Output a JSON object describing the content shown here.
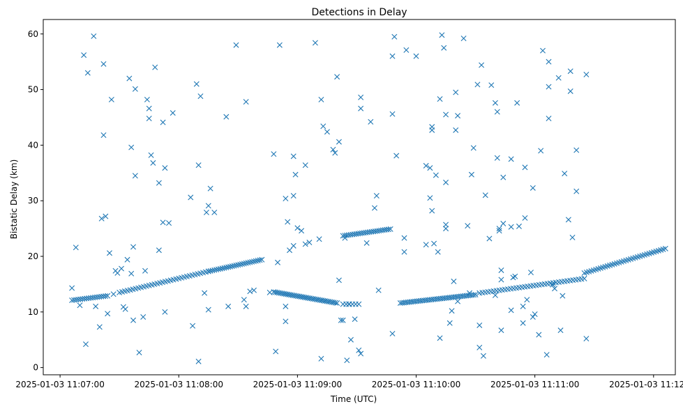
{
  "chart_data": {
    "type": "scatter",
    "title": "Detections in Delay",
    "xlabel": "Time (UTC)",
    "ylabel": "Bistatic Delay (km)",
    "marker": "x",
    "color": "#1f77b4",
    "xlim": [
      -8.5,
      311
    ],
    "ylim": [
      -1.3,
      62.6
    ],
    "x_unit": "seconds after 2025-01-03 11:07:00",
    "xticks": [
      {
        "value": 0,
        "label": "2025-01-03 11:07:00"
      },
      {
        "value": 60,
        "label": "2025-01-03 11:08:00"
      },
      {
        "value": 120,
        "label": "2025-01-03 11:09:00"
      },
      {
        "value": 180,
        "label": "2025-01-03 11:10:00"
      },
      {
        "value": 240,
        "label": "2025-01-03 11:11:00"
      },
      {
        "value": 300,
        "label": "2025-01-03 11:12:00"
      }
    ],
    "yticks": [
      {
        "value": 0,
        "label": "0"
      },
      {
        "value": 10,
        "label": "10"
      },
      {
        "value": 20,
        "label": "20"
      },
      {
        "value": 30,
        "label": "30"
      },
      {
        "value": 40,
        "label": "40"
      },
      {
        "value": 50,
        "label": "50"
      },
      {
        "value": 60,
        "label": "60"
      }
    ],
    "track": {
      "segments": [
        {
          "x_start": 6,
          "x_end": 24,
          "y_start": 12.1,
          "y_end": 12.9,
          "n": 18
        },
        {
          "x_start": 30,
          "x_end": 75,
          "y_start": 13.5,
          "y_end": 17.3,
          "n": 34
        },
        {
          "x_start": 75,
          "x_end": 102,
          "y_start": 17.3,
          "y_end": 19.4,
          "n": 28
        },
        {
          "x_start": 108,
          "x_end": 140,
          "y_start": 13.6,
          "y_end": 11.6,
          "n": 38
        },
        {
          "x_start": 143,
          "x_end": 151,
          "y_start": 11.4,
          "y_end": 11.4,
          "n": 6
        },
        {
          "x_start": 143,
          "x_end": 167,
          "y_start": 23.7,
          "y_end": 24.9,
          "n": 26
        },
        {
          "x_start": 172,
          "x_end": 210,
          "y_start": 11.6,
          "y_end": 13.1,
          "n": 42
        },
        {
          "x_start": 212,
          "x_end": 265,
          "y_start": 13.4,
          "y_end": 16.0,
          "n": 38
        },
        {
          "x_start": 265,
          "x_end": 306,
          "y_start": 17.0,
          "y_end": 21.4,
          "n": 36
        }
      ]
    },
    "scatter_points": [
      [
        6,
        14.3
      ],
      [
        8,
        21.6
      ],
      [
        10,
        11.2
      ],
      [
        12,
        56.2
      ],
      [
        13,
        4.2
      ],
      [
        14,
        53
      ],
      [
        17,
        59.6
      ],
      [
        18,
        11
      ],
      [
        20,
        7.3
      ],
      [
        21,
        26.8
      ],
      [
        22,
        41.8
      ],
      [
        22,
        54.6
      ],
      [
        23,
        27.2
      ],
      [
        24,
        9.7
      ],
      [
        25,
        20.6
      ],
      [
        26,
        48.2
      ],
      [
        27,
        13.2
      ],
      [
        28,
        17.4
      ],
      [
        29,
        17
      ],
      [
        31,
        17.8
      ],
      [
        32,
        10.9
      ],
      [
        33,
        10.5
      ],
      [
        34,
        19.4
      ],
      [
        35,
        52
      ],
      [
        36,
        39.6
      ],
      [
        36,
        16.9
      ],
      [
        37,
        8.5
      ],
      [
        37,
        21.7
      ],
      [
        38,
        34.5
      ],
      [
        38,
        50.1
      ],
      [
        40,
        2.7
      ],
      [
        42,
        9.1
      ],
      [
        43,
        17.4
      ],
      [
        44,
        48.2
      ],
      [
        45,
        46.6
      ],
      [
        45,
        44.8
      ],
      [
        46,
        38.2
      ],
      [
        47,
        36.8
      ],
      [
        48,
        54
      ],
      [
        50,
        33.2
      ],
      [
        50,
        21.1
      ],
      [
        52,
        26.1
      ],
      [
        52,
        44.1
      ],
      [
        53,
        35.9
      ],
      [
        53,
        10
      ],
      [
        55,
        26
      ],
      [
        57,
        45.8
      ],
      [
        66,
        30.6
      ],
      [
        67,
        7.5
      ],
      [
        69,
        51
      ],
      [
        70,
        36.4
      ],
      [
        70,
        1.1
      ],
      [
        71,
        48.8
      ],
      [
        73,
        13.4
      ],
      [
        74,
        27.9
      ],
      [
        75,
        29.1
      ],
      [
        75,
        10.4
      ],
      [
        76,
        32.2
      ],
      [
        78,
        27.9
      ],
      [
        84,
        45.1
      ],
      [
        85,
        11
      ],
      [
        89,
        58
      ],
      [
        93,
        12.2
      ],
      [
        94,
        11
      ],
      [
        94,
        47.8
      ],
      [
        96,
        13.7
      ],
      [
        98,
        13.9
      ],
      [
        106,
        13.5
      ],
      [
        108,
        38.4
      ],
      [
        109,
        2.9
      ],
      [
        110,
        18.9
      ],
      [
        111,
        58
      ],
      [
        114,
        8.3
      ],
      [
        114,
        11
      ],
      [
        114,
        30.4
      ],
      [
        115,
        26.2
      ],
      [
        116,
        21.1
      ],
      [
        118,
        30.9
      ],
      [
        118,
        38
      ],
      [
        118,
        21.9
      ],
      [
        119,
        34.7
      ],
      [
        120,
        25.1
      ],
      [
        122,
        24.6
      ],
      [
        124,
        36.4
      ],
      [
        124,
        22.2
      ],
      [
        126,
        22.5
      ],
      [
        129,
        58.4
      ],
      [
        131,
        23.1
      ],
      [
        132,
        1.6
      ],
      [
        132,
        48.2
      ],
      [
        133,
        43.4
      ],
      [
        135,
        42.4
      ],
      [
        138,
        39.2
      ],
      [
        139,
        38.6
      ],
      [
        140,
        52.3
      ],
      [
        141,
        15.7
      ],
      [
        141,
        40.6
      ],
      [
        142,
        8.5
      ],
      [
        143,
        8.5
      ],
      [
        144,
        23.3
      ],
      [
        145,
        1.3
      ],
      [
        146,
        11.4
      ],
      [
        147,
        5
      ],
      [
        149,
        8.7
      ],
      [
        151,
        3.1
      ],
      [
        152,
        2.5
      ],
      [
        152,
        48.6
      ],
      [
        152,
        46.6
      ],
      [
        155,
        22.4
      ],
      [
        157,
        44.2
      ],
      [
        159,
        28.7
      ],
      [
        160,
        30.9
      ],
      [
        161,
        13.9
      ],
      [
        168,
        6.1
      ],
      [
        168,
        45.6
      ],
      [
        168,
        56
      ],
      [
        169,
        59.5
      ],
      [
        170,
        38.1
      ],
      [
        174,
        20.8
      ],
      [
        174,
        23.3
      ],
      [
        175,
        57.1
      ],
      [
        180,
        56
      ],
      [
        185,
        36.3
      ],
      [
        185,
        22.1
      ],
      [
        187,
        30.5
      ],
      [
        187,
        35.9
      ],
      [
        188,
        42.7
      ],
      [
        188,
        43.3
      ],
      [
        188,
        28.2
      ],
      [
        189,
        22.3
      ],
      [
        190,
        34.6
      ],
      [
        191,
        20.8
      ],
      [
        192,
        5.3
      ],
      [
        192,
        48.3
      ],
      [
        193,
        59.8
      ],
      [
        194,
        57.5
      ],
      [
        195,
        25
      ],
      [
        195,
        25.7
      ],
      [
        195,
        45.5
      ],
      [
        195,
        33.3
      ],
      [
        197,
        8
      ],
      [
        198,
        10.2
      ],
      [
        199,
        15.5
      ],
      [
        200,
        49.5
      ],
      [
        200,
        42.7
      ],
      [
        201,
        45.3
      ],
      [
        201,
        11.9
      ],
      [
        204,
        59.2
      ],
      [
        206,
        25.5
      ],
      [
        207,
        13.4
      ],
      [
        208,
        34.7
      ],
      [
        209,
        39.5
      ],
      [
        211,
        50.9
      ],
      [
        212,
        7.6
      ],
      [
        212,
        3.6
      ],
      [
        213,
        54.4
      ],
      [
        214,
        2.1
      ],
      [
        215,
        31
      ],
      [
        217,
        23.2
      ],
      [
        218,
        50.8
      ],
      [
        220,
        13
      ],
      [
        220,
        47.6
      ],
      [
        221,
        46
      ],
      [
        221,
        37.7
      ],
      [
        222,
        25
      ],
      [
        222,
        24.6
      ],
      [
        223,
        15.8
      ],
      [
        223,
        17.5
      ],
      [
        223,
        6.7
      ],
      [
        224,
        34.2
      ],
      [
        224,
        25.9
      ],
      [
        228,
        25.3
      ],
      [
        228,
        37.5
      ],
      [
        228,
        10.3
      ],
      [
        229,
        16.2
      ],
      [
        230,
        16.4
      ],
      [
        231,
        47.6
      ],
      [
        232,
        25.4
      ],
      [
        234,
        11
      ],
      [
        234,
        8
      ],
      [
        235,
        26.9
      ],
      [
        235,
        36
      ],
      [
        236,
        12.2
      ],
      [
        238,
        17.1
      ],
      [
        239,
        32.3
      ],
      [
        239,
        9.1
      ],
      [
        240,
        9.6
      ],
      [
        242,
        5.9
      ],
      [
        243,
        39
      ],
      [
        244,
        57
      ],
      [
        246,
        2.3
      ],
      [
        247,
        55
      ],
      [
        247,
        50.5
      ],
      [
        247,
        44.8
      ],
      [
        249,
        14.9
      ],
      [
        250,
        14.2
      ],
      [
        252,
        52.1
      ],
      [
        253,
        6.7
      ],
      [
        254,
        12.9
      ],
      [
        255,
        34.9
      ],
      [
        257,
        26.6
      ],
      [
        258,
        53.3
      ],
      [
        258,
        49.7
      ],
      [
        259,
        23.4
      ],
      [
        261,
        39.1
      ],
      [
        261,
        31.7
      ],
      [
        266,
        5.2
      ],
      [
        266,
        52.7
      ]
    ]
  }
}
